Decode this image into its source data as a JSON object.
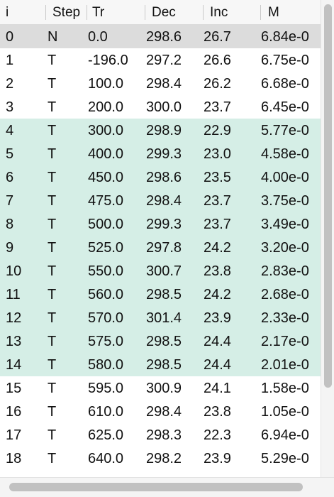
{
  "table": {
    "columns": [
      "i",
      "Step",
      "Tr",
      "Dec",
      "Inc",
      "M"
    ],
    "rows": [
      {
        "i": "0",
        "step": "N",
        "tr": "0.0",
        "dec": "298.6",
        "inc": "26.7",
        "m": "6.84e-0",
        "state": "selected"
      },
      {
        "i": "1",
        "step": "T",
        "tr": "-196.0",
        "dec": "297.2",
        "inc": "26.6",
        "m": "6.75e-0",
        "state": "normal"
      },
      {
        "i": "2",
        "step": "T",
        "tr": "100.0",
        "dec": "298.4",
        "inc": "26.2",
        "m": "6.68e-0",
        "state": "normal"
      },
      {
        "i": "3",
        "step": "T",
        "tr": "200.0",
        "dec": "300.0",
        "inc": "23.7",
        "m": "6.45e-0",
        "state": "normal"
      },
      {
        "i": "4",
        "step": "T",
        "tr": "300.0",
        "dec": "298.9",
        "inc": "22.9",
        "m": "5.77e-0",
        "state": "highlighted"
      },
      {
        "i": "5",
        "step": "T",
        "tr": "400.0",
        "dec": "299.3",
        "inc": "23.0",
        "m": "4.58e-0",
        "state": "highlighted"
      },
      {
        "i": "6",
        "step": "T",
        "tr": "450.0",
        "dec": "298.6",
        "inc": "23.5",
        "m": "4.00e-0",
        "state": "highlighted"
      },
      {
        "i": "7",
        "step": "T",
        "tr": "475.0",
        "dec": "298.4",
        "inc": "23.7",
        "m": "3.75e-0",
        "state": "highlighted"
      },
      {
        "i": "8",
        "step": "T",
        "tr": "500.0",
        "dec": "299.3",
        "inc": "23.7",
        "m": "3.49e-0",
        "state": "highlighted"
      },
      {
        "i": "9",
        "step": "T",
        "tr": "525.0",
        "dec": "297.8",
        "inc": "24.2",
        "m": "3.20e-0",
        "state": "highlighted"
      },
      {
        "i": "10",
        "step": "T",
        "tr": "550.0",
        "dec": "300.7",
        "inc": "23.8",
        "m": "2.83e-0",
        "state": "highlighted"
      },
      {
        "i": "11",
        "step": "T",
        "tr": "560.0",
        "dec": "298.5",
        "inc": "24.2",
        "m": "2.68e-0",
        "state": "highlighted"
      },
      {
        "i": "12",
        "step": "T",
        "tr": "570.0",
        "dec": "301.4",
        "inc": "23.9",
        "m": "2.33e-0",
        "state": "highlighted"
      },
      {
        "i": "13",
        "step": "T",
        "tr": "575.0",
        "dec": "298.5",
        "inc": "24.4",
        "m": "2.17e-0",
        "state": "highlighted"
      },
      {
        "i": "14",
        "step": "T",
        "tr": "580.0",
        "dec": "298.5",
        "inc": "24.4",
        "m": "2.01e-0",
        "state": "highlighted"
      },
      {
        "i": "15",
        "step": "T",
        "tr": "595.0",
        "dec": "300.9",
        "inc": "24.1",
        "m": "1.58e-0",
        "state": "normal"
      },
      {
        "i": "16",
        "step": "T",
        "tr": "610.0",
        "dec": "298.4",
        "inc": "23.8",
        "m": "1.05e-0",
        "state": "normal"
      },
      {
        "i": "17",
        "step": "T",
        "tr": "625.0",
        "dec": "298.3",
        "inc": "22.3",
        "m": "6.94e-0",
        "state": "normal"
      },
      {
        "i": "18",
        "step": "T",
        "tr": "640.0",
        "dec": "298.2",
        "inc": "23.9",
        "m": "5.29e-0",
        "state": "normal"
      }
    ]
  },
  "colors": {
    "selected_row": "#dcdcdc",
    "highlighted_row": "#d5eee6",
    "header_bg": "#f7f7f7"
  }
}
